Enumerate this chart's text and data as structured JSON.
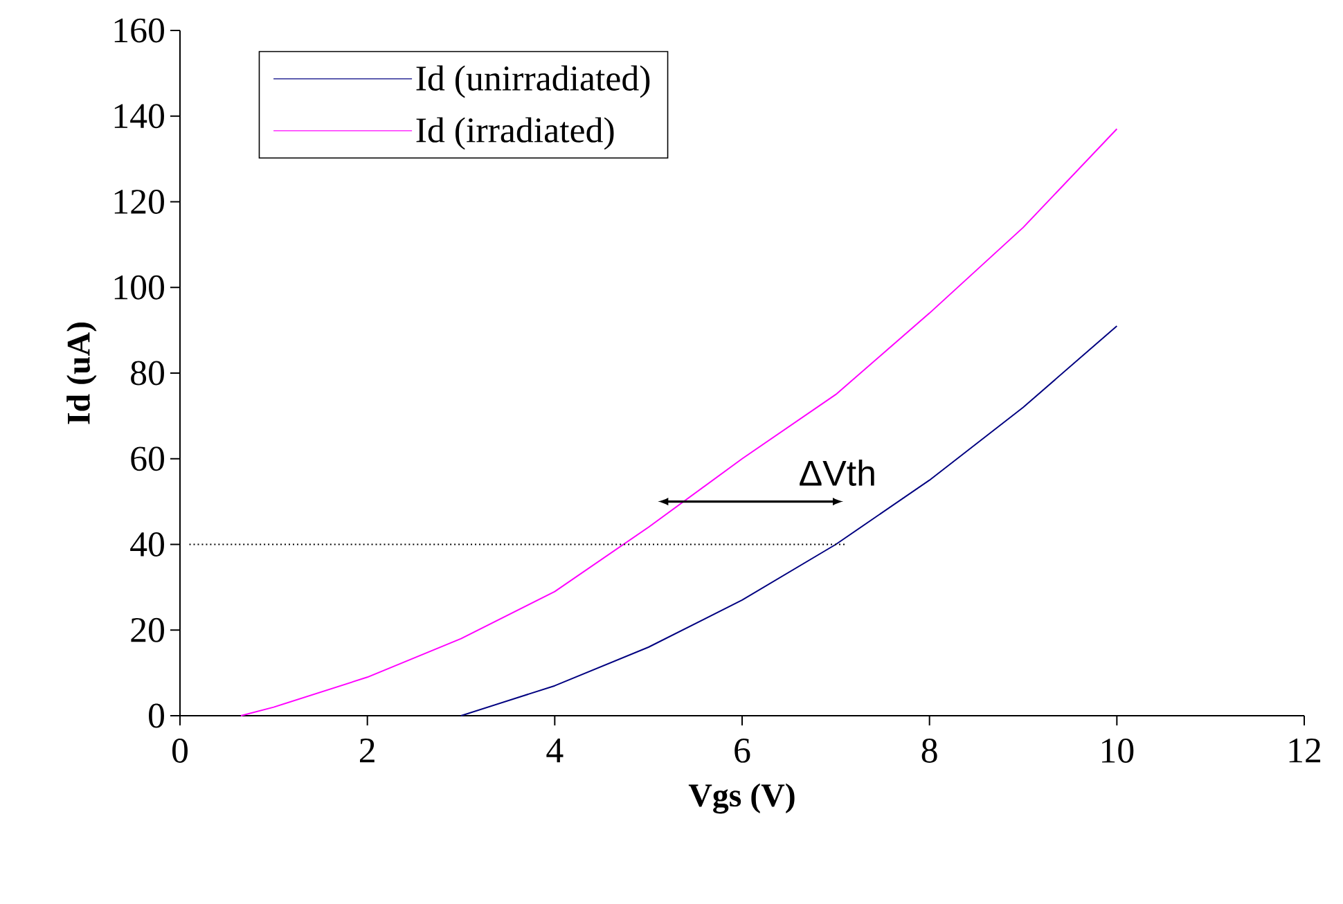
{
  "chart_data": {
    "type": "line",
    "xlabel": "Vgs (V)",
    "ylabel": "Id (uA)",
    "xlim": [
      0,
      12
    ],
    "ylim": [
      0,
      160
    ],
    "xticks": [
      0,
      2,
      4,
      6,
      8,
      10,
      12
    ],
    "yticks": [
      0,
      20,
      40,
      60,
      80,
      100,
      120,
      140,
      160
    ],
    "legend": "top left",
    "grid": false,
    "series": [
      {
        "name": "Id (unirradiated)",
        "color": "#000080",
        "x": [
          3,
          4,
          5,
          6,
          7,
          8,
          9,
          10
        ],
        "values": [
          0,
          7,
          16,
          27,
          40,
          55,
          72,
          91
        ]
      },
      {
        "name": "Id (irradiated)",
        "color": "#ff00ff",
        "x": [
          0.65,
          1,
          2,
          3,
          4,
          5,
          6,
          7,
          8,
          9,
          10
        ],
        "values": [
          0,
          2,
          9,
          18,
          29,
          44,
          60,
          75,
          94,
          114,
          137
        ]
      },
      {
        "color": "#000000",
        "line_style": "dotted",
        "x": [
          0.1,
          7.1
        ],
        "values": [
          40,
          40
        ]
      }
    ],
    "annotations": [
      "ΔVth"
    ]
  }
}
